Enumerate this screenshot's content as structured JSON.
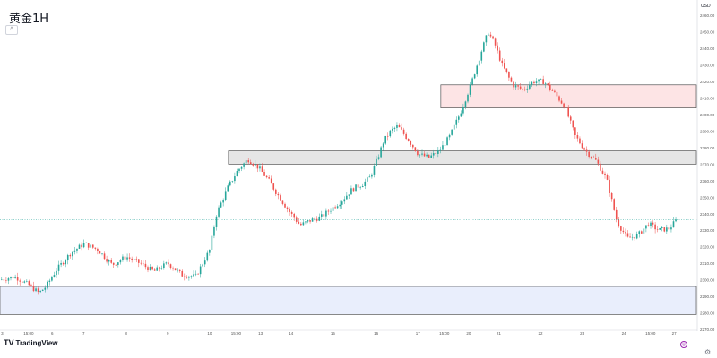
{
  "header": {
    "title": "黄金1H",
    "currency": "USD",
    "collapse_symbol": "^"
  },
  "branding": {
    "logo_mark": "TV",
    "logo_text": "TradingView"
  },
  "icons": {
    "target": "target-icon",
    "settings": "gear-icon"
  },
  "colors": {
    "up": "#26a69a",
    "down": "#ef5350",
    "last_price_bg": "#26a69a",
    "zone_resistance_fill": "#fde4e5",
    "zone_mid_fill": "#e6e6e6",
    "zone_support_fill": "#e9eefc"
  },
  "chart_data": {
    "type": "candlestick",
    "title": "黄金1H",
    "currency": "USD",
    "ylim": [
      2270,
      2465
    ],
    "y_ticks": [
      "2460.00",
      "2450.00",
      "2440.00",
      "2430.00",
      "2420.00",
      "2410.00",
      "2400.00",
      "2390.00",
      "2380.00",
      "2370.00",
      "2360.00",
      "2350.00",
      "2340.00",
      "2330.00",
      "2320.00",
      "2310.00",
      "2300.00",
      "2290.00",
      "2280.00",
      "2270.00"
    ],
    "x_ticks": [
      {
        "label": "3",
        "pos": 0.003
      },
      {
        "label": "15:00",
        "pos": 0.041
      },
      {
        "label": "6",
        "pos": 0.075
      },
      {
        "label": "7",
        "pos": 0.12
      },
      {
        "label": "8",
        "pos": 0.181
      },
      {
        "label": "9",
        "pos": 0.241
      },
      {
        "label": "10",
        "pos": 0.301
      },
      {
        "label": "15:00",
        "pos": 0.339
      },
      {
        "label": "13",
        "pos": 0.374
      },
      {
        "label": "14",
        "pos": 0.418
      },
      {
        "label": "15",
        "pos": 0.478
      },
      {
        "label": "16",
        "pos": 0.54
      },
      {
        "label": "17",
        "pos": 0.6
      },
      {
        "label": "15:00",
        "pos": 0.638
      },
      {
        "label": "20",
        "pos": 0.673
      },
      {
        "label": "21",
        "pos": 0.716
      },
      {
        "label": "22",
        "pos": 0.776
      },
      {
        "label": "23",
        "pos": 0.836
      },
      {
        "label": "24",
        "pos": 0.896
      },
      {
        "label": "15:00",
        "pos": 0.934
      },
      {
        "label": "27",
        "pos": 0.968
      }
    ],
    "last_price": {
      "value": 2336.48,
      "label": "2336.48",
      "countdown": "06:15"
    },
    "zones": [
      {
        "name": "resistance-zone",
        "y_low": 2404,
        "y_high": 2418,
        "x_start": 0.633,
        "x_end": 1.0
      },
      {
        "name": "middle-zone",
        "y_low": 2370,
        "y_high": 2378,
        "x_start": 0.328,
        "x_end": 1.0
      },
      {
        "name": "support-zone",
        "y_low": 2279,
        "y_high": 2296,
        "x_start": 0.0,
        "x_end": 1.0
      }
    ],
    "path": [
      [
        0.0,
        2300
      ],
      [
        0.02,
        2302
      ],
      [
        0.04,
        2297
      ],
      [
        0.055,
        2292
      ],
      [
        0.065,
        2296
      ],
      [
        0.08,
        2306
      ],
      [
        0.1,
        2316
      ],
      [
        0.12,
        2322
      ],
      [
        0.14,
        2318
      ],
      [
        0.16,
        2309
      ],
      [
        0.18,
        2314
      ],
      [
        0.2,
        2310
      ],
      [
        0.22,
        2305
      ],
      [
        0.24,
        2310
      ],
      [
        0.26,
        2303
      ],
      [
        0.28,
        2302
      ],
      [
        0.3,
        2318
      ],
      [
        0.31,
        2340
      ],
      [
        0.325,
        2355
      ],
      [
        0.34,
        2366
      ],
      [
        0.355,
        2373
      ],
      [
        0.37,
        2368
      ],
      [
        0.385,
        2360
      ],
      [
        0.4,
        2350
      ],
      [
        0.415,
        2341
      ],
      [
        0.43,
        2333
      ],
      [
        0.445,
        2336
      ],
      [
        0.46,
        2338
      ],
      [
        0.475,
        2343
      ],
      [
        0.49,
        2348
      ],
      [
        0.505,
        2355
      ],
      [
        0.52,
        2358
      ],
      [
        0.53,
        2362
      ],
      [
        0.54,
        2372
      ],
      [
        0.55,
        2384
      ],
      [
        0.56,
        2390
      ],
      [
        0.57,
        2393
      ],
      [
        0.585,
        2385
      ],
      [
        0.6,
        2376
      ],
      [
        0.615,
        2374
      ],
      [
        0.63,
        2378
      ],
      [
        0.645,
        2387
      ],
      [
        0.66,
        2401
      ],
      [
        0.675,
        2418
      ],
      [
        0.69,
        2438
      ],
      [
        0.7,
        2450
      ],
      [
        0.71,
        2442
      ],
      [
        0.72,
        2430
      ],
      [
        0.735,
        2418
      ],
      [
        0.75,
        2415
      ],
      [
        0.765,
        2420
      ],
      [
        0.78,
        2420
      ],
      [
        0.795,
        2413
      ],
      [
        0.81,
        2405
      ],
      [
        0.825,
        2387
      ],
      [
        0.84,
        2378
      ],
      [
        0.855,
        2372
      ],
      [
        0.87,
        2361
      ],
      [
        0.885,
        2335
      ],
      [
        0.9,
        2325
      ],
      [
        0.915,
        2327
      ],
      [
        0.93,
        2334
      ],
      [
        0.945,
        2330
      ],
      [
        0.96,
        2331
      ],
      [
        0.97,
        2336
      ]
    ]
  }
}
